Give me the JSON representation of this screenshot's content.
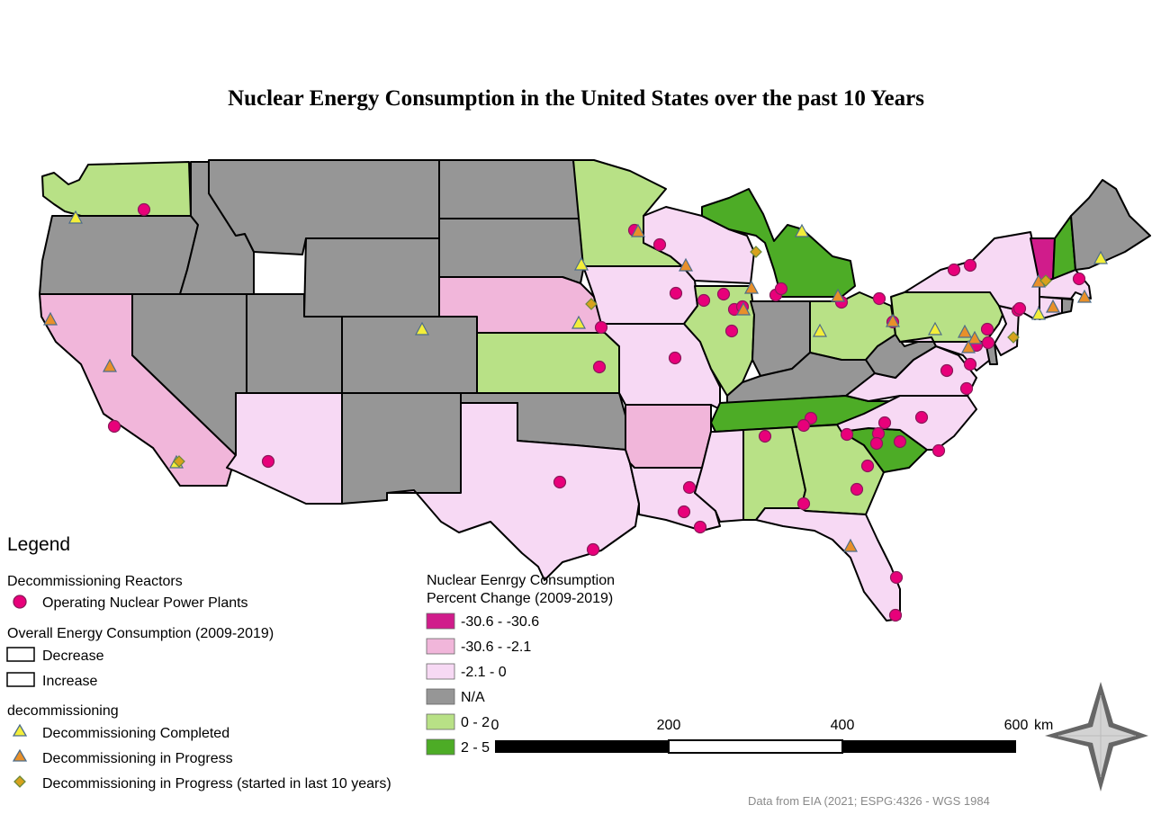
{
  "title": "Nuclear Energy Consumption in the United States over the past 10 Years",
  "source": "Data from EIA (2021; ESPG:4326 - WGS 1984",
  "colors": {
    "class_1": "#d01c8b",
    "class_2": "#f1b6da",
    "class_3": "#f7d9f4",
    "na": "#969696",
    "class_4": "#b8e186",
    "class_5": "#4dac26",
    "plant": "#e8007a",
    "completed": "#f3ee3a",
    "in_progress": "#e8902a",
    "recent": "#d7a21c"
  },
  "legend": {
    "heading": "Legend",
    "group_reactors": "Decommissioning Reactors",
    "plants_label": "Operating Nuclear Power Plants",
    "group_overall": "Overall Energy Consumption (2009-2019)",
    "decrease_label": "Decrease",
    "increase_label": "Increase",
    "group_decom": "decommissioning",
    "completed_label": "Decommissioning Completed",
    "in_progress_label": "Decommissioning in Progress",
    "recent_label": "Decommissioning in Progress (started in last 10 years)"
  },
  "choropleth_legend": {
    "title_line1": "Nuclear Eenrgy Consumption",
    "title_line2": "Percent Change (2009-2019)",
    "classes": [
      "-30.6 - -30.6",
      "-30.6 - -2.1",
      "-2.1 - 0",
      "N/A",
      "0 - 2",
      "2 - 5"
    ]
  },
  "scale_bar": {
    "ticks": [
      "0",
      "200",
      "400",
      "600"
    ],
    "unit": "km"
  }
}
